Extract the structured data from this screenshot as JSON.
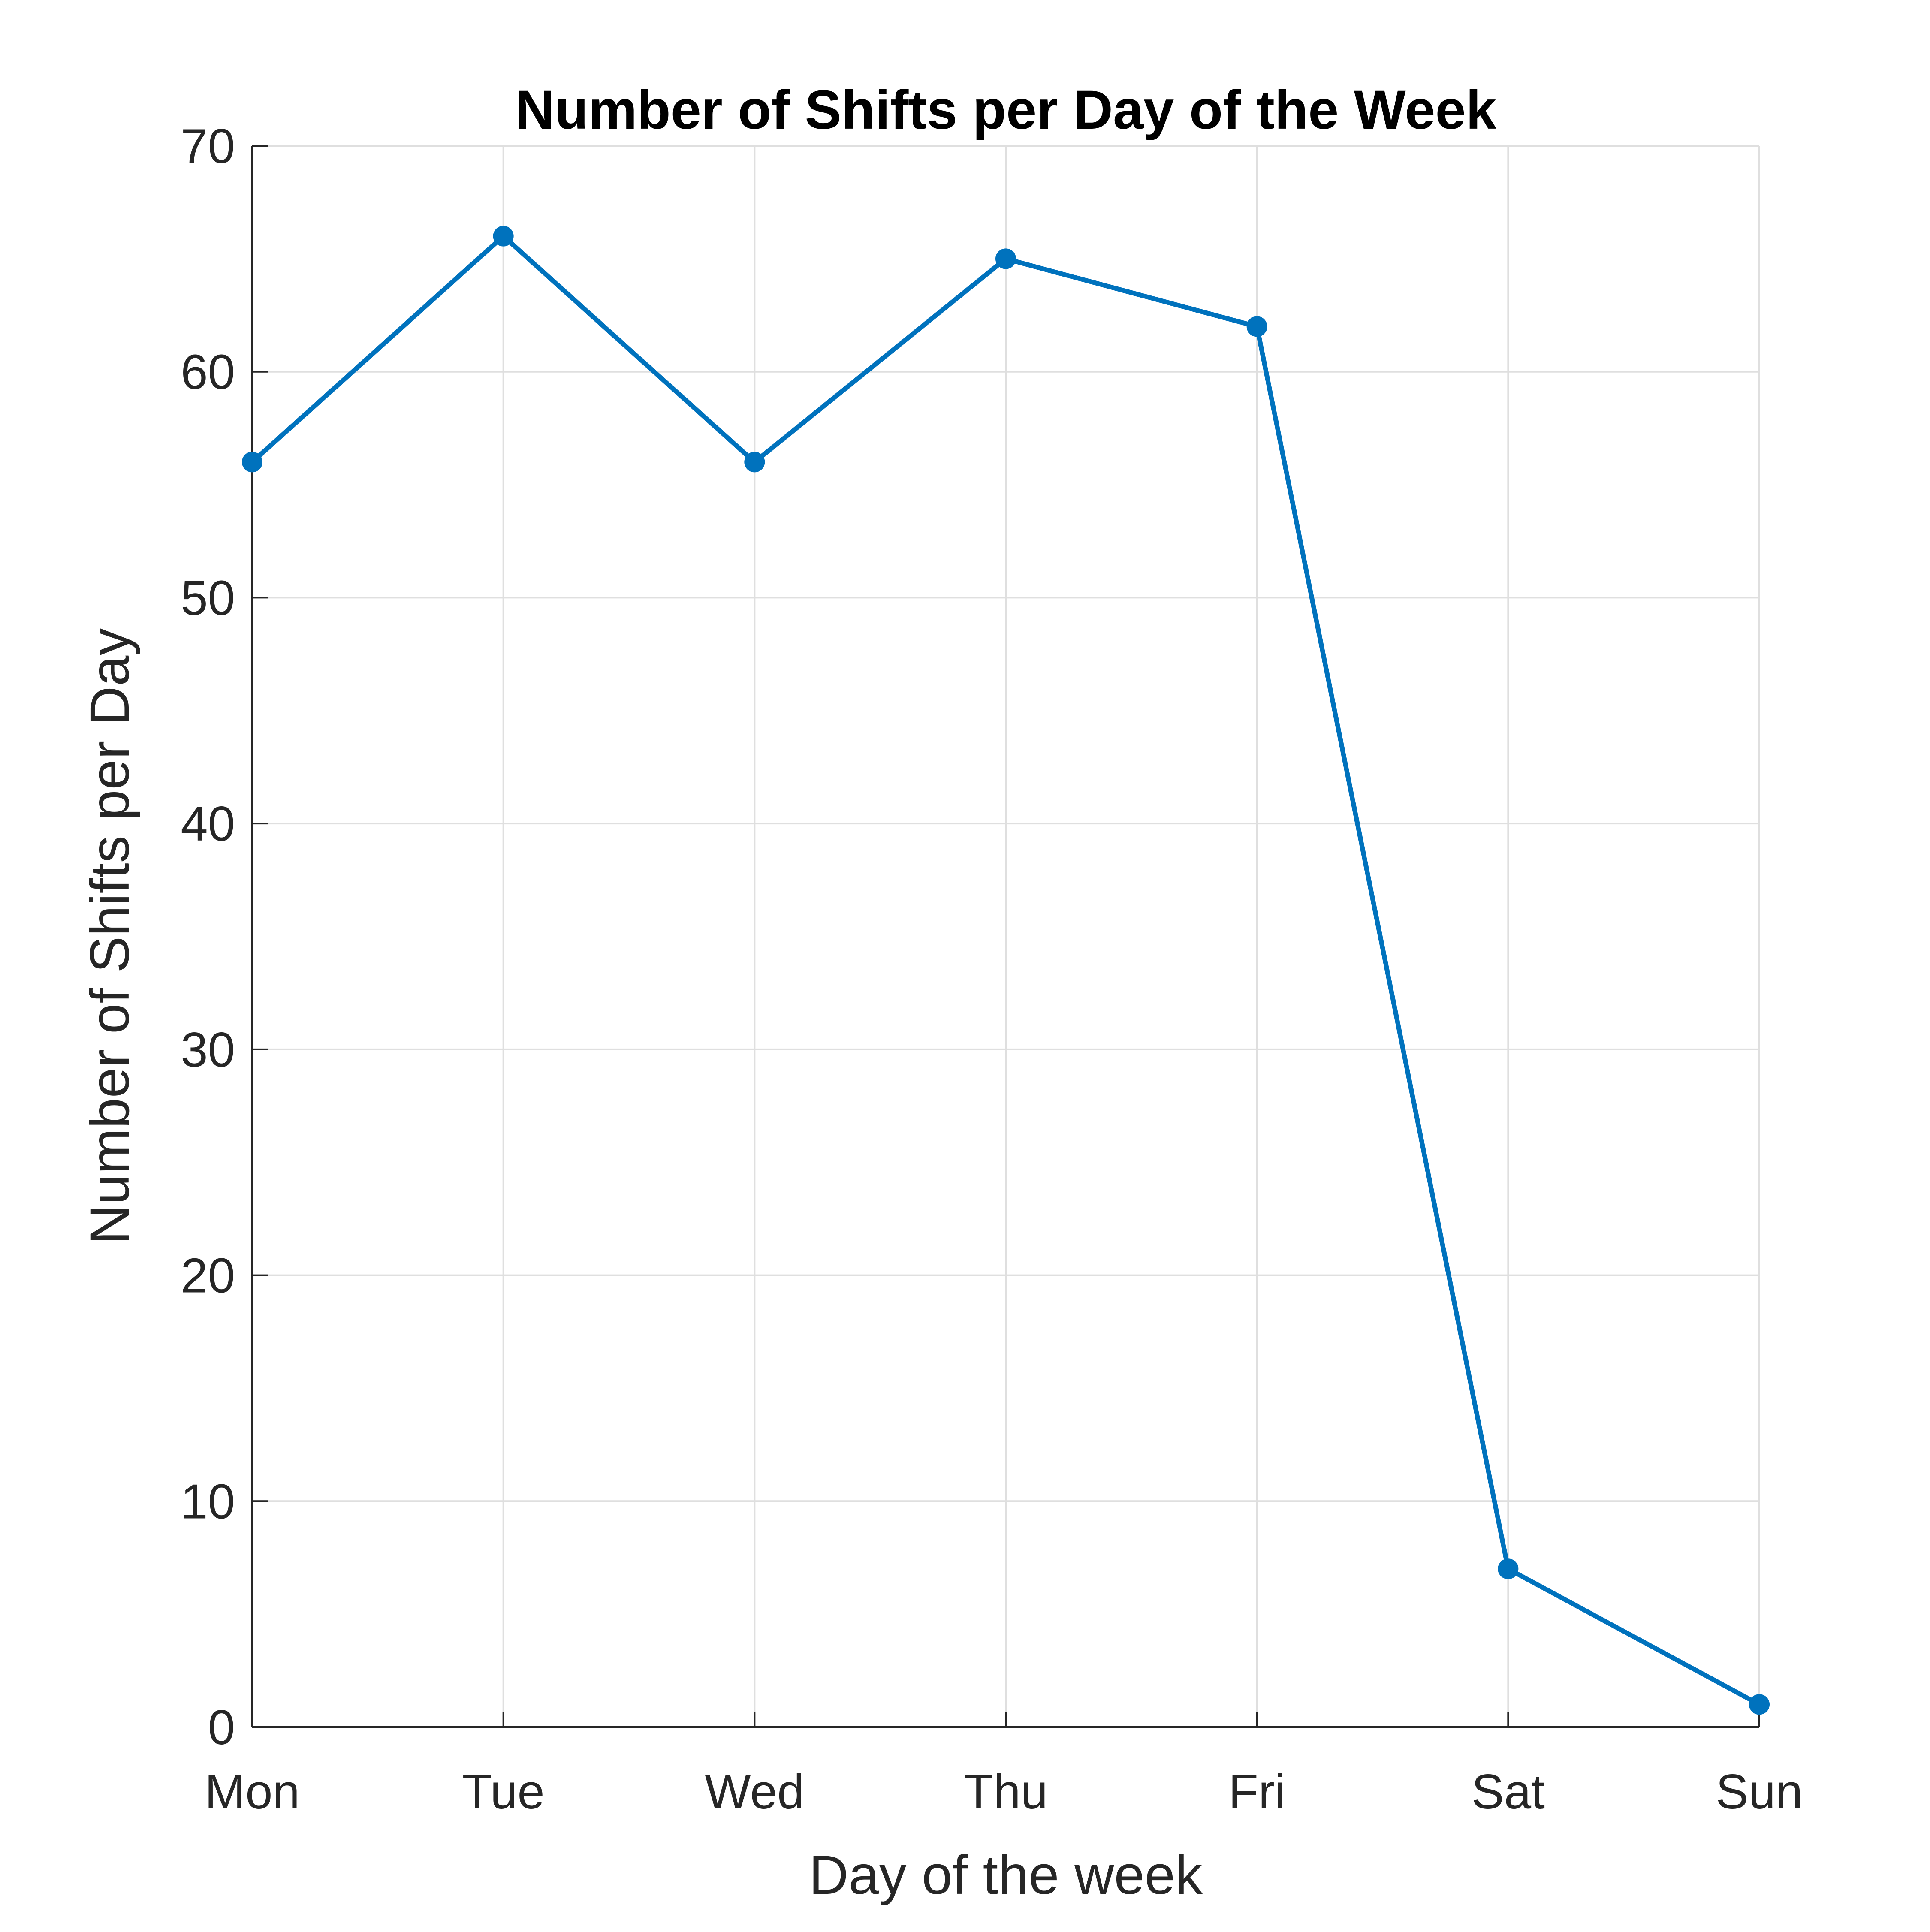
{
  "chart_data": {
    "type": "line",
    "title": "Number of Shifts per Day of the Week",
    "xlabel": "Day of the week",
    "ylabel": "Number of Shifts per Day",
    "categories": [
      "Mon",
      "Tue",
      "Wed",
      "Thu",
      "Fri",
      "Sat",
      "Sun"
    ],
    "series": [
      {
        "values": [
          56,
          66,
          56,
          65,
          62,
          7,
          1
        ]
      }
    ],
    "ylim": [
      0,
      70
    ],
    "yticks": [
      "0",
      "10",
      "20",
      "30",
      "40",
      "50",
      "60",
      "70"
    ],
    "grid": true,
    "markers": true,
    "colors": {
      "series": "#0072BD",
      "axis": "#262626",
      "grid": "#DFDFDF"
    }
  }
}
